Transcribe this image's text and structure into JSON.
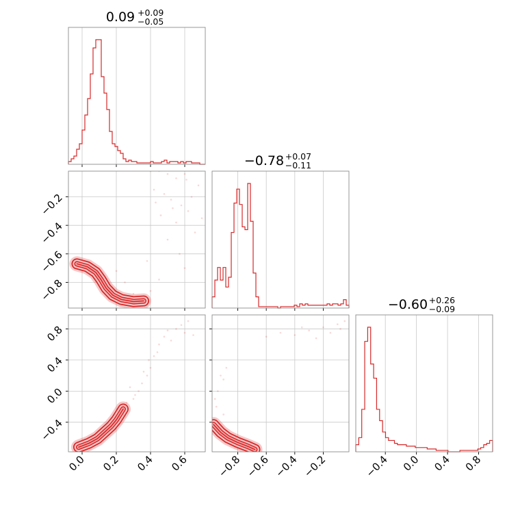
{
  "chart_data": {
    "type": "corner",
    "color": "#d62728",
    "grid": true,
    "panel_titles": [
      {
        "value": "0.09",
        "plus": "+0.09",
        "minus": "−0.05"
      },
      {
        "value": "−0.78",
        "plus": "+0.07",
        "minus": "−0.11"
      },
      {
        "value": "−0.60",
        "plus": "+0.26",
        "minus": "−0.09"
      }
    ],
    "param_ranges": [
      [
        -0.08,
        0.72
      ],
      [
        -0.98,
        -0.02
      ],
      [
        -0.78,
        0.98
      ]
    ],
    "ticks": {
      "p0": [
        0.0,
        0.2,
        0.4,
        0.6
      ],
      "p1": [
        -0.8,
        -0.6,
        -0.4,
        -0.2
      ],
      "p2": [
        -0.4,
        0.0,
        0.4,
        0.8
      ]
    },
    "tick_labels": {
      "p0": [
        "0.0",
        "0.2",
        "0.4",
        "0.6"
      ],
      "p1": [
        "−0.8",
        "−0.6",
        "−0.4",
        "−0.2"
      ],
      "p2": [
        "−0.4",
        "0.0",
        "0.4",
        "0.8"
      ]
    },
    "histograms": [
      {
        "param": 0,
        "values": [
          0.02,
          0.04,
          0.06,
          0.11,
          0.15,
          0.25,
          0.36,
          0.48,
          0.66,
          0.85,
          0.91,
          0.91,
          0.64,
          0.52,
          0.4,
          0.24,
          0.15,
          0.13,
          0.1,
          0.08,
          0.04,
          0.02,
          0.03,
          0.02,
          0.02,
          0.01,
          0.01,
          0.01,
          0.01,
          0.01,
          0.02,
          0.01,
          0.01,
          0.01,
          0.02,
          0.03,
          0.01,
          0.02,
          0.02,
          0.02,
          0.01,
          0.02,
          0.01,
          0.02,
          0.02,
          0.01,
          0.01,
          0.01,
          0.0,
          0.0
        ]
      },
      {
        "param": 1,
        "values": [
          0.08,
          0.2,
          0.29,
          0.2,
          0.29,
          0.15,
          0.22,
          0.54,
          0.75,
          0.85,
          0.74,
          0.58,
          0.56,
          0.89,
          0.62,
          0.25,
          0.08,
          0.01,
          0.01,
          0.01,
          0.01,
          0.01,
          0.01,
          0.01,
          0.0,
          0.01,
          0.01,
          0.01,
          0.01,
          0.01,
          0.02,
          0.01,
          0.03,
          0.02,
          0.03,
          0.02,
          0.02,
          0.02,
          0.02,
          0.02,
          0.02,
          0.02,
          0.03,
          0.02,
          0.03,
          0.03,
          0.02,
          0.03,
          0.06,
          0.02
        ]
      },
      {
        "param": 2,
        "values": [
          0.05,
          0.1,
          0.3,
          0.78,
          0.88,
          0.62,
          0.52,
          0.3,
          0.22,
          0.14,
          0.1,
          0.08,
          0.08,
          0.06,
          0.05,
          0.05,
          0.05,
          0.04,
          0.04,
          0.04,
          0.03,
          0.03,
          0.03,
          0.03,
          0.02,
          0.02,
          0.02,
          0.01,
          0.01,
          0.01,
          0.01,
          0.0,
          0.0,
          0.0,
          0.0,
          0.01,
          0.01,
          0.01,
          0.01,
          0.01,
          0.01,
          0.02,
          0.03,
          0.05,
          0.06,
          0.08
        ]
      }
    ],
    "pairs": [
      {
        "x_param": 0,
        "y_param": 1,
        "ridge": [
          [
            -0.03,
            -0.67
          ],
          [
            0.03,
            -0.69
          ],
          [
            0.08,
            -0.73
          ],
          [
            0.11,
            -0.78
          ],
          [
            0.14,
            -0.84
          ],
          [
            0.18,
            -0.89
          ],
          [
            0.23,
            -0.92
          ],
          [
            0.3,
            -0.935
          ],
          [
            0.36,
            -0.93
          ]
        ],
        "scatter": [
          [
            0.45,
            -0.02
          ],
          [
            0.5,
            -0.04
          ],
          [
            0.55,
            -0.07
          ],
          [
            0.6,
            -0.04
          ],
          [
            0.42,
            -0.15
          ],
          [
            0.48,
            -0.18
          ],
          [
            0.52,
            -0.22
          ],
          [
            0.58,
            -0.26
          ],
          [
            0.62,
            -0.3
          ],
          [
            0.46,
            -0.33
          ],
          [
            0.55,
            -0.38
          ],
          [
            0.64,
            -0.2
          ],
          [
            0.68,
            -0.12
          ],
          [
            0.66,
            -0.45
          ],
          [
            0.5,
            -0.5
          ],
          [
            0.57,
            -0.6
          ],
          [
            0.6,
            -0.7
          ],
          [
            0.45,
            -0.78
          ],
          [
            0.4,
            -0.86
          ],
          [
            0.35,
            -0.9
          ],
          [
            0.3,
            -0.88
          ],
          [
            0.25,
            -0.8
          ],
          [
            0.2,
            -0.72
          ],
          [
            0.4,
            -0.02
          ],
          [
            0.53,
            -0.28
          ],
          [
            0.61,
            -0.08
          ],
          [
            0.43,
            -0.24
          ],
          [
            0.7,
            -0.35
          ],
          [
            0.38,
            -0.65
          ]
        ]
      },
      {
        "x_param": 0,
        "y_param": 2,
        "ridge": [
          [
            -0.02,
            -0.72
          ],
          [
            0.04,
            -0.67
          ],
          [
            0.09,
            -0.61
          ],
          [
            0.13,
            -0.53
          ],
          [
            0.17,
            -0.45
          ],
          [
            0.2,
            -0.37
          ],
          [
            0.22,
            -0.3
          ],
          [
            0.24,
            -0.23
          ]
        ],
        "scatter": [
          [
            0.3,
            -0.1
          ],
          [
            0.33,
            0.0
          ],
          [
            0.35,
            0.1
          ],
          [
            0.38,
            0.2
          ],
          [
            0.4,
            0.3
          ],
          [
            0.42,
            0.45
          ],
          [
            0.45,
            0.6
          ],
          [
            0.48,
            0.7
          ],
          [
            0.5,
            0.78
          ],
          [
            0.55,
            0.8
          ],
          [
            0.6,
            0.75
          ],
          [
            0.65,
            0.72
          ],
          [
            0.28,
            0.05
          ],
          [
            0.36,
            0.25
          ],
          [
            0.26,
            -0.15
          ],
          [
            0.44,
            0.5
          ],
          [
            0.52,
            0.65
          ],
          [
            0.58,
            0.85
          ],
          [
            0.31,
            -0.05
          ],
          [
            0.39,
            0.4
          ],
          [
            0.62,
            0.9
          ]
        ]
      },
      {
        "x_param": 1,
        "y_param": 2,
        "ridge": [
          [
            -0.97,
            -0.43
          ],
          [
            -0.92,
            -0.53
          ],
          [
            -0.87,
            -0.6
          ],
          [
            -0.8,
            -0.66
          ],
          [
            -0.73,
            -0.71
          ],
          [
            -0.68,
            -0.75
          ]
        ],
        "scatter": [
          [
            -0.95,
            -0.2
          ],
          [
            -0.94,
            0.0
          ],
          [
            -0.9,
            0.15
          ],
          [
            -0.88,
            0.3
          ],
          [
            -0.96,
            -0.1
          ],
          [
            -0.92,
            0.2
          ],
          [
            -0.4,
            0.72
          ],
          [
            -0.3,
            0.78
          ],
          [
            -0.2,
            0.82
          ],
          [
            -0.1,
            0.86
          ],
          [
            -0.05,
            0.9
          ],
          [
            -0.5,
            0.75
          ],
          [
            -0.25,
            0.68
          ],
          [
            -0.15,
            0.75
          ],
          [
            -0.6,
            0.7
          ],
          [
            -0.9,
            -0.3
          ],
          [
            -0.35,
            0.82
          ],
          [
            -0.08,
            0.8
          ]
        ]
      }
    ]
  }
}
